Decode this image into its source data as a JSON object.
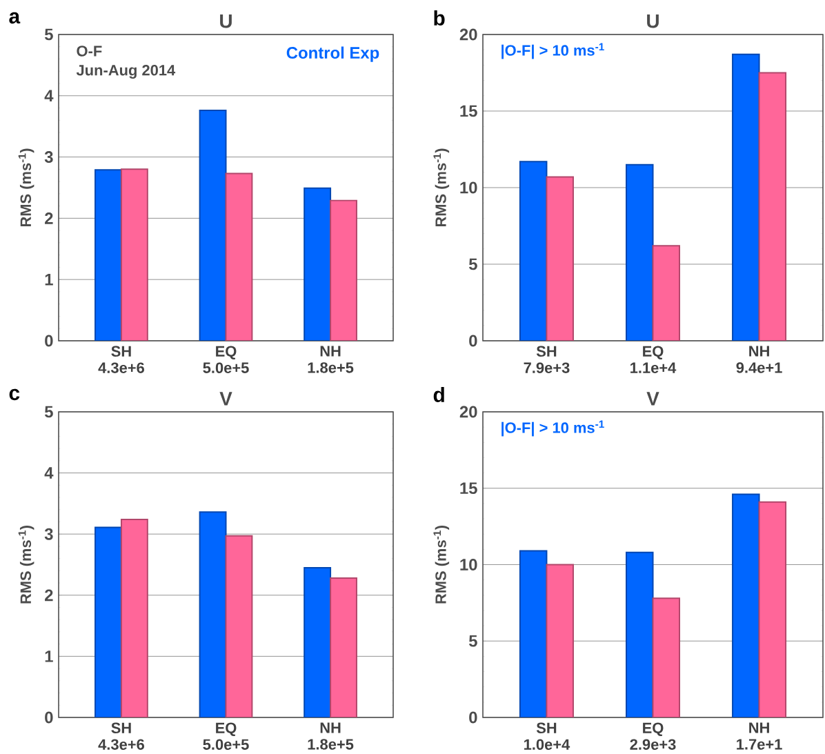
{
  "chart_data": [
    {
      "type": "bar",
      "title": "U",
      "ylabel": "RMS (ms$^{-1}$)",
      "annotations": [
        "a",
        "O-F",
        "Jun-Aug 2014"
      ],
      "categories": [
        "SH 4.3e+6",
        "EQ 5.0e+5",
        "NH 1.8e+5"
      ],
      "series": [
        {
          "name": "Control Exp",
          "color": "#0066ff",
          "values": [
            2.79,
            3.76,
            2.49
          ]
        },
        {
          "color": "#ff6699",
          "values": [
            2.8,
            2.73,
            2.29
          ]
        }
      ],
      "ylim": [
        0,
        5
      ],
      "yticks": [
        0,
        1,
        2,
        3,
        4,
        5
      ],
      "grid": "y",
      "legend": "top right"
    },
    {
      "type": "bar",
      "title": "U",
      "ylabel": "RMS (ms$^{-1}$)",
      "annotations": [
        "b",
        "|O-F| > 10 ms$^{-1}$"
      ],
      "categories": [
        "SH 7.9e+3",
        "EQ 1.1e+4",
        "NH 9.4e+1"
      ],
      "series": [
        {
          "color": "#0066ff",
          "values": [
            11.7,
            11.5,
            18.7
          ]
        },
        {
          "color": "#ff6699",
          "values": [
            10.7,
            6.2,
            17.5
          ]
        }
      ],
      "ylim": [
        0,
        20
      ],
      "yticks": [
        0,
        5,
        10,
        15,
        20
      ],
      "grid": "y"
    },
    {
      "type": "bar",
      "title": "V",
      "ylabel": "RMS (ms$^{-1}$)",
      "annotations": [
        "c"
      ],
      "categories": [
        "SH 4.3e+6",
        "EQ 5.0e+5",
        "NH 1.8e+5"
      ],
      "series": [
        {
          "color": "#0066ff",
          "values": [
            3.11,
            3.36,
            2.45
          ]
        },
        {
          "color": "#ff6699",
          "values": [
            3.24,
            2.97,
            2.28
          ]
        }
      ],
      "ylim": [
        0,
        5
      ],
      "yticks": [
        0,
        1,
        2,
        3,
        4,
        5
      ],
      "grid": "y"
    },
    {
      "type": "bar",
      "title": "V",
      "ylabel": "RMS (ms$^{-1}$)",
      "annotations": [
        "d",
        "|O-F| > 10 ms$^{-1}$"
      ],
      "categories": [
        "SH 1.0e+4",
        "EQ 2.9e+3",
        "NH 1.7e+1"
      ],
      "series": [
        {
          "color": "#0066ff",
          "values": [
            10.9,
            10.8,
            14.6
          ]
        },
        {
          "color": "#ff6699",
          "values": [
            10.0,
            7.8,
            14.1
          ]
        }
      ],
      "ylim": [
        0,
        20
      ],
      "yticks": [
        0,
        5,
        10,
        15,
        20
      ],
      "grid": "y"
    }
  ]
}
